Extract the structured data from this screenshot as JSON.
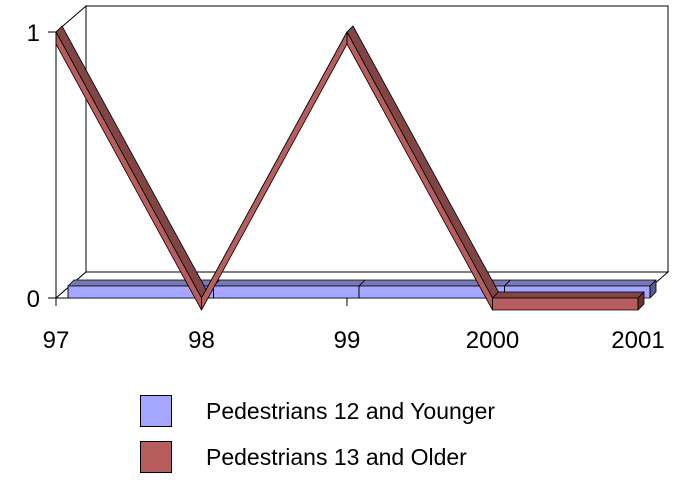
{
  "chart_data": {
    "type": "line",
    "style": "3d",
    "categories": [
      "97",
      "98",
      "99",
      "2000",
      "2001"
    ],
    "ylim": [
      0,
      1
    ],
    "yticks": [
      "0",
      "1"
    ],
    "grid": false,
    "legend_position": "bottom",
    "series": [
      {
        "name": "Pedestrians 12 and Younger",
        "values": [
          0,
          0,
          0,
          0,
          0
        ],
        "color": "#a4a6ff"
      },
      {
        "name": "Pedestrians 13 and Older",
        "values": [
          1,
          0,
          1,
          0,
          0
        ],
        "color": "#b65e5e"
      }
    ]
  }
}
